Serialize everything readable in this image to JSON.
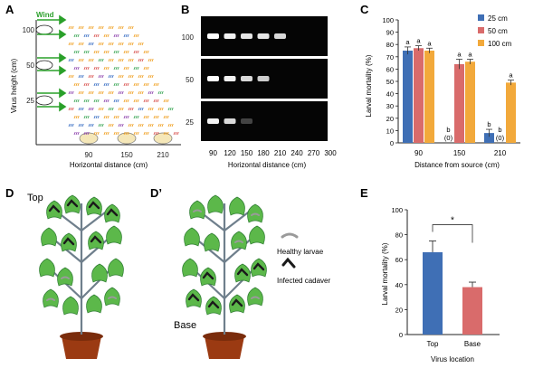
{
  "figure": {
    "panel_labels": {
      "A": "A",
      "B": "B",
      "C": "C",
      "D": "D",
      "Dp": "D’",
      "E": "E"
    }
  },
  "panel_a": {
    "wind_label": "Wind",
    "ylabel": "Virus height (cm)",
    "xlabel": "Horizontal distance (cm)",
    "y_ticks": [
      "100",
      "50",
      "25"
    ],
    "x_ticks": [
      "90",
      "150",
      "210"
    ],
    "colors": {
      "wind": "#2aa02a",
      "dots_red": "#d9534f",
      "dots_orange": "#f0a020",
      "dots_blue": "#3a6fc4",
      "dots_purple": "#8e44ad",
      "dots_green": "#3aa655"
    }
  },
  "panel_b": {
    "row_labels": [
      "100",
      "50",
      "25"
    ],
    "x_ticks": [
      "90",
      "120",
      "150",
      "180",
      "210",
      "240",
      "270",
      "300"
    ],
    "xlabel": "Horizontal distance (cm)",
    "band_intensity": [
      [
        1.0,
        0.95,
        0.9,
        0.9,
        0.85,
        0,
        0,
        0
      ],
      [
        1.0,
        0.95,
        0.85,
        0.8,
        0,
        0,
        0,
        0
      ],
      [
        0.95,
        0.85,
        0.25,
        0,
        0,
        0,
        0,
        0
      ]
    ]
  },
  "panel_c": {
    "chart_data": {
      "type": "bar",
      "categories": [
        "90",
        "150",
        "210"
      ],
      "series": [
        {
          "name": "25 cm",
          "color": "#3f6fb5",
          "values": [
            75,
            0,
            8
          ],
          "errors": [
            3,
            0,
            3
          ],
          "sig": [
            "a",
            "b",
            "b"
          ],
          "zero_label": "(0)"
        },
        {
          "name": "50 cm",
          "color": "#d96b6b",
          "values": [
            77,
            64,
            0
          ],
          "errors": [
            2,
            4,
            0
          ],
          "sig": [
            "a",
            "a",
            "b"
          ],
          "zero_label": "(0)"
        },
        {
          "name": "100 cm",
          "color": "#f2a93b",
          "values": [
            75,
            66,
            49
          ],
          "errors": [
            2,
            2,
            2
          ],
          "sig": [
            "a",
            "a",
            "a"
          ],
          "zero_label": "(0)"
        }
      ],
      "ylabel": "Larval mortality (%)",
      "xlabel": "Distance from source (cm)",
      "ylim": [
        0,
        100
      ],
      "y_ticks": [
        0,
        10,
        20,
        30,
        40,
        50,
        60,
        70,
        80,
        90,
        100
      ],
      "legend_position": "top-right"
    }
  },
  "panel_d": {
    "top_label": "Top",
    "base_label": "Base",
    "legend_healthy": "Healthy larvae",
    "legend_infected": "Infected cadaver"
  },
  "panel_e": {
    "chart_data": {
      "type": "bar",
      "categories": [
        "Top",
        "Base"
      ],
      "values": [
        66,
        38
      ],
      "errors": [
        9,
        4
      ],
      "colors": [
        "#3f6fb5",
        "#d96b6b"
      ],
      "ylabel": "Larval mortality (%)",
      "xlabel": "Virus location",
      "ylim": [
        0,
        100
      ],
      "y_ticks": [
        0,
        20,
        40,
        60,
        80,
        100
      ],
      "significance": "*"
    }
  }
}
